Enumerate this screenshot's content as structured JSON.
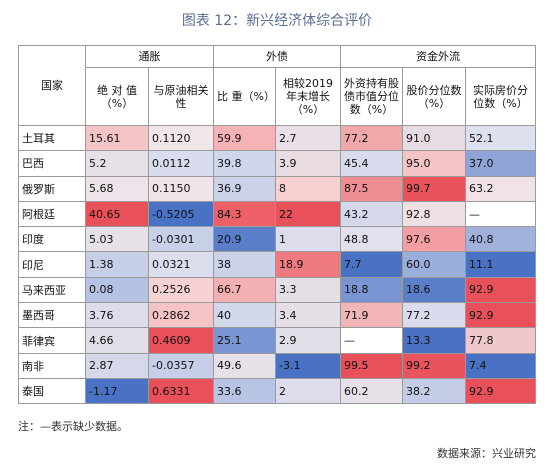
{
  "header": {
    "title": "图表 12：新兴经济体综合评价"
  },
  "table": {
    "groups": [
      "通胀",
      "外债",
      "资金外流"
    ],
    "columns": [
      "国家",
      "绝 对 值（%）",
      "与原油相关性",
      "比 重（%）",
      "相较2019年末增长（%）",
      "外资持有股债市值分位数（%）",
      "股价分位数（%）",
      "实际房价分位数（%）"
    ],
    "rows": [
      [
        "土耳其",
        "15.61",
        "0.1120",
        "59.9",
        "2.7",
        "77.2",
        "91.0",
        "52.1"
      ],
      [
        "巴西",
        "5.2",
        "0.0112",
        "39.8",
        "3.9",
        "45.4",
        "95.0",
        "37.0"
      ],
      [
        "俄罗斯",
        "5.68",
        "0.1150",
        "36.9",
        "8",
        "87.5",
        "99.7",
        "63.2"
      ],
      [
        "阿根廷",
        "40.65",
        "-0.5205",
        "84.3",
        "22",
        "43.2",
        "92.8",
        "—"
      ],
      [
        "印度",
        "5.03",
        "-0.0301",
        "20.9",
        "1",
        "48.8",
        "97.6",
        "40.8"
      ],
      [
        "印尼",
        "1.38",
        "0.0321",
        "38",
        "18.9",
        "7.7",
        "60.0",
        "11.1"
      ],
      [
        "马来西亚",
        "0.08",
        "0.2526",
        "66.7",
        "3.3",
        "18.8",
        "18.6",
        "92.9"
      ],
      [
        "墨西哥",
        "3.76",
        "0.2862",
        "40",
        "3.4",
        "71.9",
        "77.2",
        "92.9"
      ],
      [
        "菲律宾",
        "4.66",
        "0.4609",
        "25.1",
        "2.9",
        "—",
        "13.3",
        "77.8"
      ],
      [
        "南非",
        "2.87",
        "-0.0357",
        "49.6",
        "-3.1",
        "99.5",
        "99.2",
        "7.4"
      ],
      [
        "泰国",
        "-1.17",
        "0.6331",
        "33.6",
        "2",
        "60.2",
        "38.2",
        "92.9"
      ]
    ],
    "colors": [
      [
        "#f4c4c6",
        "#f0e6ea",
        "#f5b3b6",
        "#e8e0e6",
        "#f0a8ab",
        "#e8dce4",
        "#dde0ee"
      ],
      [
        "#e8e0e8",
        "#d8dcec",
        "#d0d6ea",
        "#e8dce2",
        "#d8dcec",
        "#f4c4c6",
        "#8ea4d6"
      ],
      [
        "#ece4ea",
        "#efe4ea",
        "#ccd2e8",
        "#f7d0d2",
        "#ee8e93",
        "#e9545c",
        "#f0e2e6"
      ],
      [
        "#e8505a",
        "#4a72c4",
        "#ee6068",
        "#e8505a",
        "#d4d8ea",
        "#f0e0e4",
        "#ffffff"
      ],
      [
        "#e6e0e8",
        "#c8d0e8",
        "#5a7ec8",
        "#dcdcec",
        "#e0e0ee",
        "#f29ea2",
        "#a0b2dc"
      ],
      [
        "#c6cee8",
        "#dcdeee",
        "#ccd2e8",
        "#ee7a80",
        "#4a72c4",
        "#9aaedc",
        "#4a72c4"
      ],
      [
        "#b4c2e4",
        "#f6d2d4",
        "#f2b0b3",
        "#e4dee6",
        "#7a96d2",
        "#5a7ec8",
        "#e8505a"
      ],
      [
        "#dcdcec",
        "#f4c4c6",
        "#d2d8ea",
        "#e6dee6",
        "#f2b6b9",
        "#d8dcec",
        "#e8505a"
      ],
      [
        "#e2dee8",
        "#e8505a",
        "#7a96d2",
        "#e2dee8",
        "#ffffff",
        "#4a72c4",
        "#f0c8cc"
      ],
      [
        "#d4d8ea",
        "#c6cee8",
        "#e6e0e8",
        "#4a72c4",
        "#e8505a",
        "#e9545c",
        "#4a72c4"
      ],
      [
        "#4a72c4",
        "#e8505a",
        "#b8c4e4",
        "#dcdcec",
        "#e8e0e8",
        "#c4cce8",
        "#e8505a"
      ]
    ]
  },
  "footer": {
    "note": "注：—表示缺少数据。",
    "source": "数据来源：兴业研究"
  }
}
